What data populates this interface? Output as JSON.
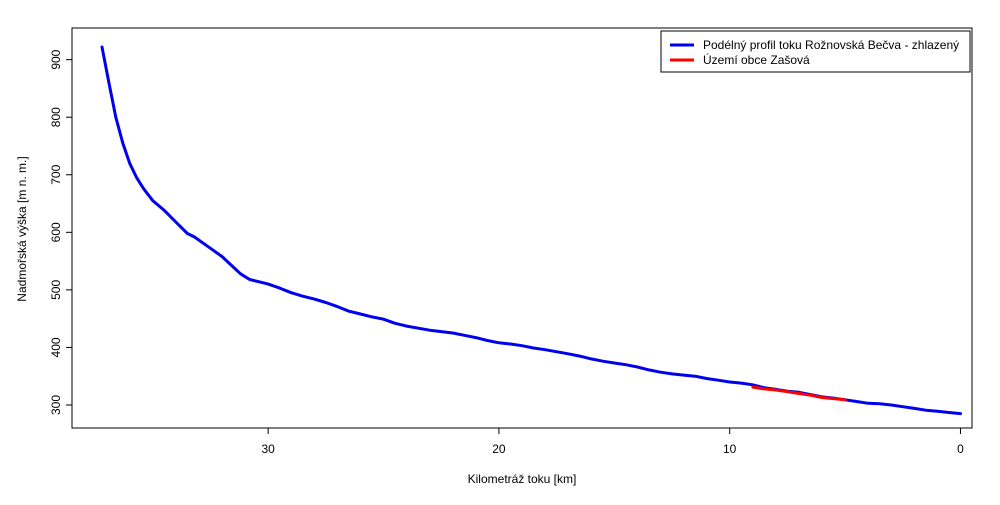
{
  "chart_data": {
    "type": "line",
    "xlabel": "Kilometráž toku [km]",
    "ylabel": "Nadmořská výška [m n. m.]",
    "xlim": [
      38.5,
      -0.5
    ],
    "ylim": [
      260,
      955
    ],
    "x_ticks": [
      30,
      20,
      10,
      0
    ],
    "y_ticks": [
      300,
      400,
      500,
      600,
      700,
      800,
      900
    ],
    "legend_position": "top-right",
    "grid": false,
    "series": [
      {
        "name": "Podélný profil toku Rožnovská Bečva - zhlazený",
        "color": "#0000ee",
        "x": [
          37.2,
          36.9,
          36.6,
          36.3,
          36.0,
          35.7,
          35.4,
          35.0,
          34.5,
          34.0,
          33.5,
          33.2,
          32.6,
          32.0,
          31.6,
          31.2,
          30.8,
          30.5,
          30.0,
          29.5,
          29.0,
          28.5,
          28.0,
          27.5,
          27.0,
          26.5,
          26.0,
          25.5,
          25.0,
          24.5,
          24.0,
          23.0,
          22.0,
          21.5,
          21.0,
          20.5,
          20.0,
          19.5,
          19.0,
          18.5,
          18.0,
          17.0,
          16.5,
          16.0,
          15.5,
          15.0,
          14.5,
          14.0,
          13.5,
          13.0,
          12.5,
          12.0,
          11.5,
          11.0,
          10.5,
          10.0,
          9.5,
          9.0,
          8.5,
          8.0,
          7.5,
          7.0,
          6.5,
          6.0,
          5.5,
          5.0,
          4.5,
          4.0,
          3.5,
          3.0,
          2.5,
          2.0,
          1.5,
          1.0,
          0.5,
          0.0
        ],
        "y": [
          922,
          860,
          800,
          755,
          720,
          695,
          676,
          655,
          638,
          618,
          598,
          592,
          575,
          558,
          543,
          528,
          518,
          515,
          510,
          503,
          495,
          489,
          484,
          478,
          471,
          463,
          458,
          453,
          449,
          442,
          437,
          430,
          425,
          421,
          417,
          412,
          408,
          406,
          403,
          399,
          396,
          389,
          385,
          380,
          376,
          373,
          370,
          366,
          361,
          357,
          354,
          352,
          350,
          346,
          343,
          340,
          338,
          335,
          330,
          327,
          324,
          322,
          318,
          314,
          312,
          309,
          306,
          303,
          302,
          300,
          297,
          294,
          291,
          289,
          287,
          285
        ]
      },
      {
        "name": "Území obce Zašová",
        "color": "#ff0000",
        "x": [
          9.0,
          8.5,
          8.0,
          7.5,
          7.0,
          6.5,
          6.0,
          5.5,
          5.0
        ],
        "y": [
          331,
          328,
          326,
          323,
          320,
          317,
          313,
          311,
          309
        ]
      }
    ]
  }
}
